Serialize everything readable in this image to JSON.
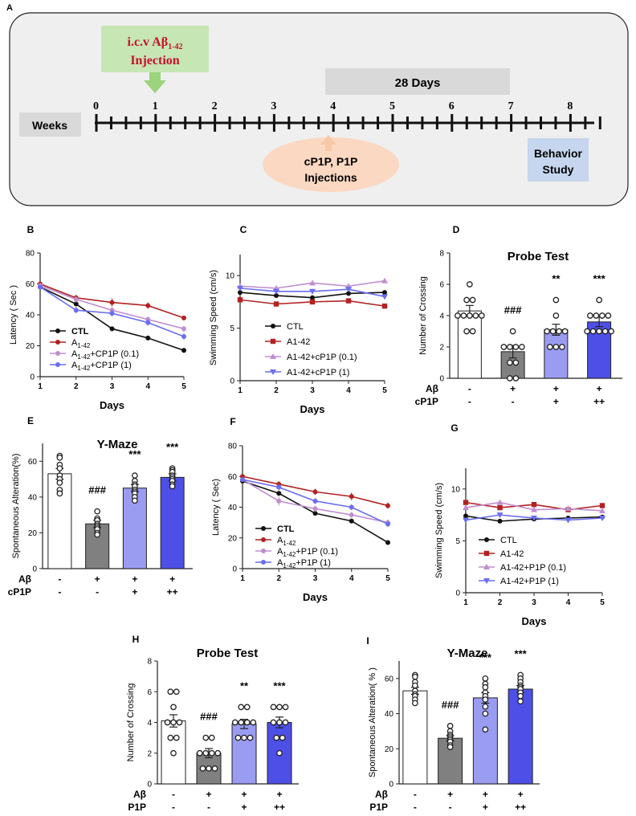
{
  "timeline": {
    "panel_letter": "A",
    "injection_label_line1": "i.c.v Aβ",
    "injection_label_sub": "1-42",
    "injection_label_line2": "Injection",
    "duration_label": "28 Days",
    "weeks_label": "Weeks",
    "week_numbers": [
      "0",
      "1",
      "2",
      "3",
      "4",
      "5",
      "6",
      "7",
      "8"
    ],
    "drug_label_line1": "cP1P, P1P",
    "drug_label_line2": "Injections",
    "behavior_label_line1": "Behavior",
    "behavior_label_line2": "Study",
    "colors": {
      "injection_box": "#c6e6b4",
      "injection_text": "#c8102e",
      "arrow_green": "#9bd47c",
      "duration_box": "#d9d9d9",
      "weeks_box": "#d9d9d9",
      "drug_ellipse": "#fbd8c2",
      "behavior_box": "#c5d6ee",
      "background": "#efefef"
    }
  },
  "chart_data": [
    {
      "id": "B",
      "type": "line",
      "title": "",
      "xlabel": "Days",
      "ylabel": "Latency ( Sec )",
      "xlim": [
        1,
        5
      ],
      "ylim": [
        0,
        80
      ],
      "xticks": [
        "1",
        "2",
        "3",
        "4",
        "5"
      ],
      "yticks": [
        "0",
        "20",
        "40",
        "60",
        "80"
      ],
      "series": [
        {
          "name": "CTL",
          "color": "#111111",
          "marker": "circle",
          "bold": true,
          "sub": "",
          "values": [
            58,
            47,
            31,
            25,
            17
          ],
          "errors": [
            1.5,
            1.5,
            1.5,
            1.5,
            1.5
          ]
        },
        {
          "name": "A",
          "sub": "1-42",
          "suffix": "",
          "color": "#b22222",
          "marker": "circle",
          "values": [
            60,
            51,
            48,
            46,
            38
          ],
          "errors": [
            1.5,
            2,
            2.5,
            2,
            1.5
          ]
        },
        {
          "name": "A",
          "sub": "1-42",
          "suffix": "+CP1P (0.1)",
          "color": "#c08ed0",
          "marker": "circle",
          "values": [
            59,
            50,
            43,
            37,
            31
          ],
          "errors": [
            1.5,
            2,
            2,
            2,
            2
          ]
        },
        {
          "name": "A",
          "sub": "1-42",
          "suffix": "+CP1P (1)",
          "color": "#6a6ef0",
          "marker": "circle",
          "values": [
            58,
            43,
            41,
            35,
            26
          ],
          "errors": [
            1.5,
            2,
            2,
            2,
            2
          ]
        }
      ]
    },
    {
      "id": "C",
      "type": "line",
      "title": "",
      "xlabel": "Days",
      "ylabel": "Swimming Speed (cm/s)",
      "xlim": [
        1,
        5
      ],
      "ylim": [
        0,
        12
      ],
      "xticks": [
        "1",
        "2",
        "3",
        "4",
        "5"
      ],
      "yticks": [
        "0",
        "5",
        "10"
      ],
      "series": [
        {
          "name": "CTL",
          "color": "#111111",
          "marker": "circle",
          "values": [
            8.4,
            8.1,
            7.9,
            8.3,
            8.4
          ]
        },
        {
          "name": "A1-42",
          "color": "#b22222",
          "marker": "square",
          "values": [
            7.7,
            7.3,
            7.5,
            7.6,
            7.1
          ]
        },
        {
          "name": "A1-42+cP1P (0.1)",
          "color": "#c08ed0",
          "marker": "triangle-up",
          "values": [
            9.0,
            8.8,
            9.3,
            9.0,
            9.5
          ]
        },
        {
          "name": "A1-42+cP1P (1)",
          "color": "#6a6ef0",
          "marker": "triangle-down",
          "values": [
            8.8,
            8.5,
            8.5,
            8.7,
            8.0
          ]
        }
      ]
    },
    {
      "id": "D",
      "type": "bar",
      "title": "Probe Test",
      "xlabel": "",
      "ylabel": "Number of Crossing",
      "ylim": [
        0,
        8
      ],
      "yticks": [
        "0",
        "2",
        "4",
        "6",
        "8"
      ],
      "colors": [
        "#ffffff",
        "#808080",
        "#9a9cf2",
        "#4d4fe6"
      ],
      "values": [
        4.3,
        1.7,
        3.1,
        3.6
      ],
      "errors": [
        0.35,
        0.4,
        0.35,
        0.3
      ],
      "annotations": [
        "",
        "###",
        "**",
        "***"
      ],
      "points": [
        [
          6,
          5,
          5,
          4,
          4,
          4,
          4,
          3,
          4,
          3
        ],
        [
          3,
          2,
          2,
          2,
          2,
          1,
          1,
          0,
          0
        ],
        [
          5,
          4,
          3,
          3,
          3,
          3,
          2,
          2,
          2
        ],
        [
          5,
          4,
          4,
          4,
          4,
          3,
          3,
          3,
          3,
          3
        ]
      ],
      "row_labels": [
        "Aβ",
        "cP1P"
      ],
      "rows": [
        [
          "-",
          "+",
          "+",
          "+"
        ],
        [
          "-",
          "-",
          "+",
          "++"
        ]
      ]
    },
    {
      "id": "E",
      "type": "bar",
      "title": "Y-Maze",
      "xlabel": "",
      "ylabel": "Spontaneous Alteration(%)",
      "ylim": [
        0,
        70
      ],
      "yticks": [
        "0",
        "20",
        "40",
        "60"
      ],
      "colors": [
        "#ffffff",
        "#808080",
        "#9a9cf2",
        "#4d4fe6"
      ],
      "values": [
        53,
        25,
        45,
        51
      ],
      "errors": [
        3,
        2,
        2,
        2
      ],
      "annotations": [
        "",
        "###",
        "***",
        "***"
      ],
      "points": [
        [
          63,
          62,
          58,
          56,
          52,
          50,
          48,
          44,
          42
        ],
        [
          32,
          28,
          27,
          25,
          24,
          23,
          22,
          20,
          19
        ],
        [
          52,
          49,
          47,
          46,
          44,
          43,
          42,
          40,
          38
        ],
        [
          56,
          55,
          54,
          52,
          51,
          50,
          49,
          47,
          46
        ]
      ],
      "row_labels": [
        "Aβ",
        "cP1P"
      ],
      "rows": [
        [
          "-",
          "+",
          "+",
          "+"
        ],
        [
          "-",
          "-",
          "+",
          "++"
        ]
      ]
    },
    {
      "id": "F",
      "type": "line",
      "title": "",
      "xlabel": "Days",
      "ylabel": "Latency ( Sec)",
      "xlim": [
        1,
        5
      ],
      "ylim": [
        0,
        80
      ],
      "xticks": [
        "1",
        "2",
        "3",
        "4",
        "5"
      ],
      "yticks": [
        "0",
        "20",
        "40",
        "60",
        "80"
      ],
      "series": [
        {
          "name": "CTL",
          "color": "#111111",
          "marker": "circle",
          "bold": true,
          "sub": "",
          "values": [
            57,
            49,
            36,
            31,
            17
          ],
          "errors": [
            1.5,
            1.5,
            1.5,
            1.5,
            1.5
          ]
        },
        {
          "name": "A",
          "sub": "1-42",
          "suffix": "",
          "color": "#b22222",
          "marker": "circle",
          "values": [
            60,
            55,
            50,
            47,
            41
          ],
          "errors": [
            1.5,
            2,
            2,
            2.5,
            2
          ]
        },
        {
          "name": "A",
          "sub": "1-42",
          "suffix": "+P1P (0.1)",
          "color": "#c08ed0",
          "marker": "circle",
          "values": [
            58,
            44,
            39,
            35,
            30
          ],
          "errors": [
            1.5,
            3,
            2,
            2,
            2
          ]
        },
        {
          "name": "A",
          "sub": "1-42",
          "suffix": "+P1P (1)",
          "color": "#6a6ef0",
          "marker": "circle",
          "values": [
            58,
            53,
            44,
            40,
            29
          ],
          "errors": [
            1.5,
            2,
            2,
            2,
            2
          ]
        }
      ]
    },
    {
      "id": "G",
      "type": "line",
      "title": "",
      "xlabel": "Days",
      "ylabel": "Swimming Speed (cm/s)",
      "xlim": [
        1,
        5
      ],
      "ylim": [
        0,
        12
      ],
      "xticks": [
        "1",
        "2",
        "3",
        "4",
        "5"
      ],
      "yticks": [
        "0",
        "5",
        "10"
      ],
      "series": [
        {
          "name": "CTL",
          "color": "#111111",
          "marker": "circle",
          "values": [
            7.4,
            6.9,
            7.1,
            7.2,
            7.3
          ]
        },
        {
          "name": "A1-42",
          "color": "#b22222",
          "marker": "square",
          "values": [
            8.7,
            8.2,
            8.5,
            8.0,
            8.4
          ]
        },
        {
          "name": "A1-42+P1P (0.1)",
          "color": "#c08ed0",
          "marker": "triangle-up",
          "values": [
            8.2,
            8.7,
            8.0,
            8.1,
            7.9
          ]
        },
        {
          "name": "A1-42+P1P (1)",
          "color": "#6a6ef0",
          "marker": "triangle-down",
          "values": [
            7.0,
            7.5,
            7.2,
            7.0,
            7.2
          ]
        }
      ]
    },
    {
      "id": "H",
      "type": "bar",
      "title": "Probe Test",
      "xlabel": "",
      "ylabel": "Number of Crossing",
      "ylim": [
        0,
        8
      ],
      "yticks": [
        "0",
        "2",
        "4",
        "6",
        "8"
      ],
      "colors": [
        "#ffffff",
        "#808080",
        "#9a9cf2",
        "#4d4fe6"
      ],
      "values": [
        4.1,
        2.0,
        3.9,
        4.0
      ],
      "errors": [
        0.4,
        0.3,
        0.3,
        0.35
      ],
      "annotations": [
        "",
        "###",
        "**",
        "***"
      ],
      "points": [
        [
          6,
          6,
          5,
          4,
          4,
          4,
          3,
          3,
          2
        ],
        [
          3,
          3,
          2,
          2,
          2,
          2,
          1,
          1,
          1
        ],
        [
          5,
          5,
          4,
          4,
          4,
          4,
          3,
          3,
          3
        ],
        [
          5,
          5,
          5,
          4,
          4,
          4,
          3,
          3,
          2
        ]
      ],
      "row_labels": [
        "Aβ",
        "P1P"
      ],
      "rows": [
        [
          "-",
          "+",
          "+",
          "+"
        ],
        [
          "-",
          "-",
          "+",
          "++"
        ]
      ]
    },
    {
      "id": "I",
      "type": "bar",
      "title": "Y-Maze",
      "xlabel": "",
      "ylabel": "Spontaneous Alteration( % )",
      "ylim": [
        0,
        70
      ],
      "yticks": [
        "0",
        "20",
        "40",
        "60"
      ],
      "colors": [
        "#ffffff",
        "#808080",
        "#9a9cf2",
        "#4d4fe6"
      ],
      "values": [
        53,
        26,
        49,
        54
      ],
      "errors": [
        2,
        1.5,
        3,
        2
      ],
      "annotations": [
        "",
        "###",
        "***",
        "***"
      ],
      "points": [
        [
          62,
          61,
          58,
          56,
          53,
          51,
          50,
          48,
          46
        ],
        [
          33,
          30,
          28,
          27,
          26,
          25,
          24,
          22,
          21
        ],
        [
          60,
          57,
          55,
          52,
          50,
          48,
          44,
          40,
          31
        ],
        [
          62,
          60,
          58,
          56,
          55,
          54,
          52,
          50,
          47
        ]
      ],
      "row_labels": [
        "Aβ",
        "P1P"
      ],
      "rows": [
        [
          "-",
          "+",
          "+",
          "+"
        ],
        [
          "-",
          "-",
          "+",
          "++"
        ]
      ]
    }
  ]
}
